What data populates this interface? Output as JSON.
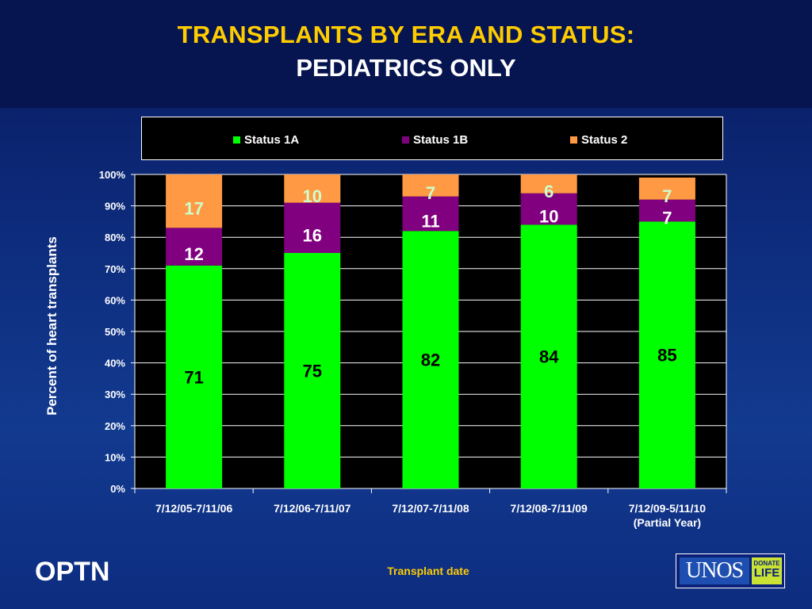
{
  "header": {
    "title": "TRANSPLANTS BY ERA AND STATUS:",
    "subtitle": "PEDIATRICS ONLY"
  },
  "footer": {
    "optn_label": "OPTN",
    "unos_label": "UNOS",
    "donate_label": "DONATE",
    "life_label": "LIFE"
  },
  "colors": {
    "status_1a": "#00ff00",
    "status_1b": "#800080",
    "status_2": "#ff9944",
    "label_light": "#ccffcc",
    "plot_bg": "#000000"
  },
  "chart_data": {
    "type": "bar",
    "stacked": true,
    "categories": [
      [
        "7/12/05-7/11/06"
      ],
      [
        "7/12/06-7/11/07"
      ],
      [
        "7/12/07-7/11/08"
      ],
      [
        "7/12/08-7/11/09"
      ],
      [
        "7/12/09-5/11/10",
        "(Partial Year)"
      ]
    ],
    "series": [
      {
        "name": "Status 1A",
        "values": [
          71,
          75,
          82,
          84,
          85
        ]
      },
      {
        "name": "Status 1B",
        "values": [
          12,
          16,
          11,
          10,
          7
        ]
      },
      {
        "name": "Status 2",
        "values": [
          17,
          10,
          7,
          6,
          7
        ]
      }
    ],
    "xlabel": "Transplant date",
    "ylabel": "Percent of heart transplants",
    "ylim": [
      0,
      100
    ],
    "yticks": [
      "0%",
      "10%",
      "20%",
      "30%",
      "40%",
      "50%",
      "60%",
      "70%",
      "80%",
      "90%",
      "100%"
    ],
    "grid": true,
    "legend_position": "top"
  }
}
